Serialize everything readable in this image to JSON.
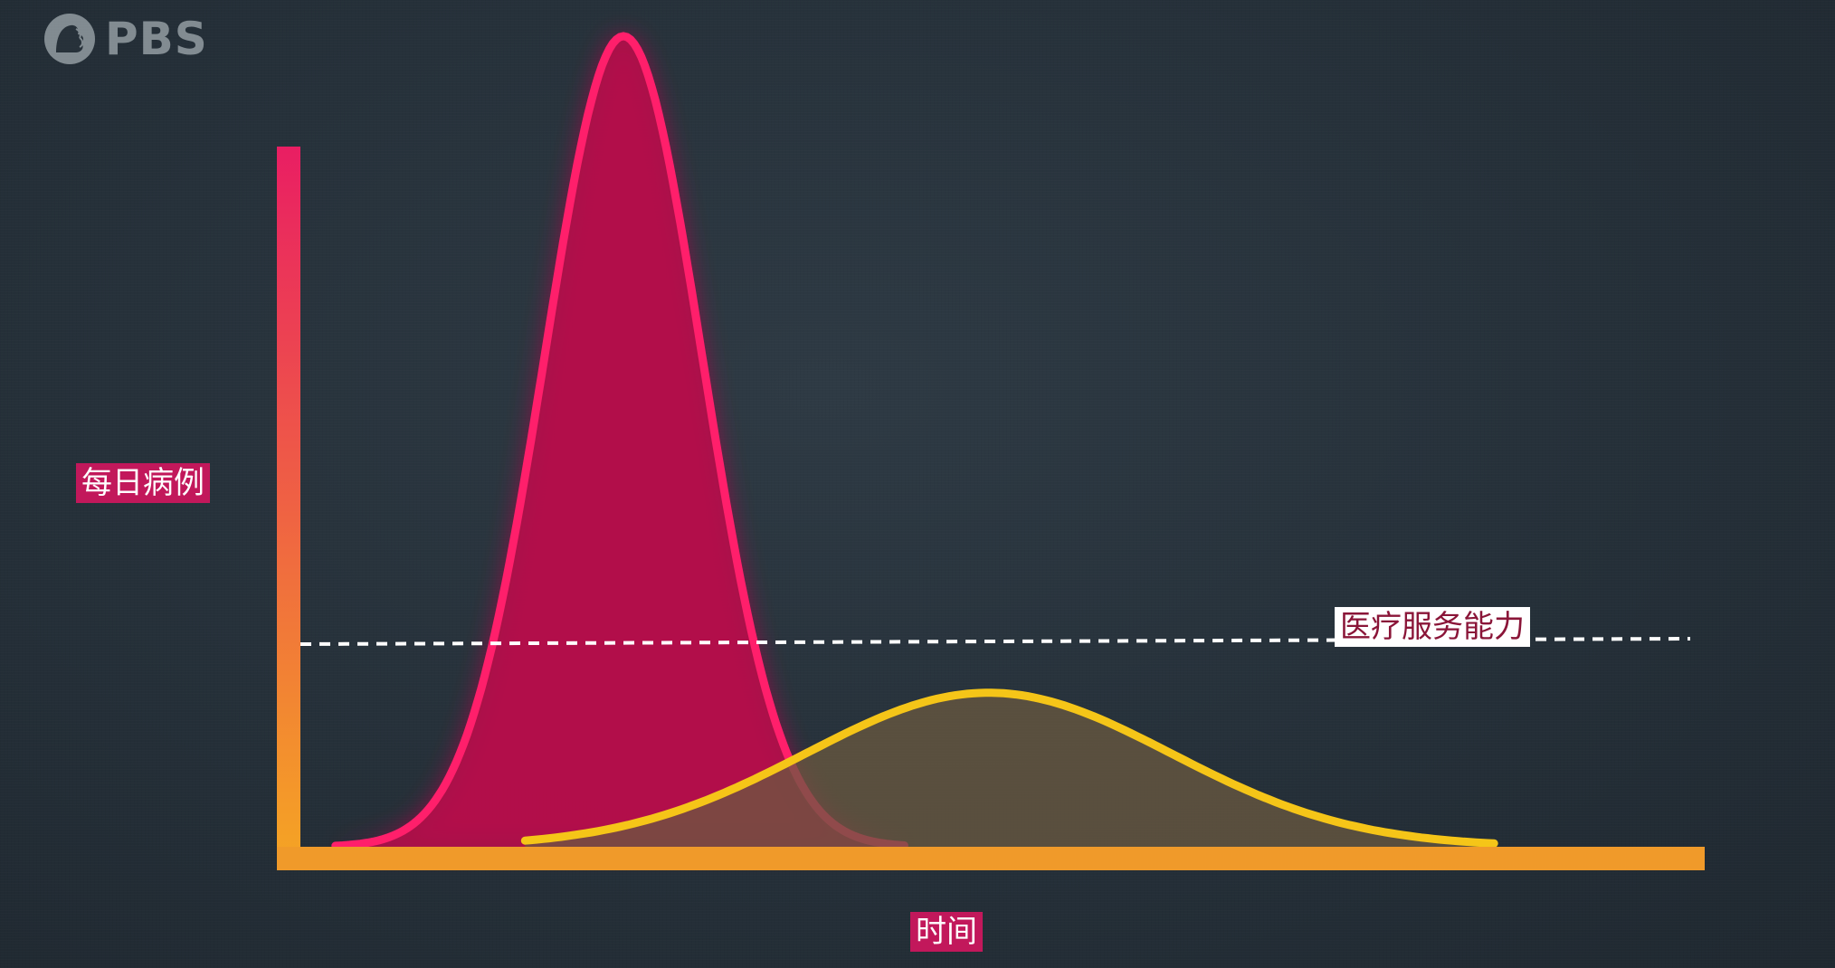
{
  "logo": {
    "text": "PBS",
    "icon": "pbs-head-icon"
  },
  "chart_data": {
    "type": "area",
    "xlabel": "时间",
    "ylabel": "每日病例",
    "grid": false,
    "legend": "none",
    "axes": {
      "y_axis_gradient": [
        "#e91e63",
        "#f5a623"
      ],
      "x_axis_color": "#f09a2a"
    },
    "capacity": {
      "label": "医疗服务能力",
      "value": 0.25,
      "style": "dashed",
      "color": "#ffffff"
    },
    "series": [
      {
        "shape": "gaussian",
        "peak_x": 0.23,
        "peak_y": 1.0,
        "width": 0.056,
        "start_x": 0.025,
        "end_x": 0.43,
        "stroke": "#ff1f6b",
        "fill": "#b5104a"
      },
      {
        "shape": "gaussian",
        "peak_x": 0.49,
        "peak_y": 0.19,
        "width": 0.13,
        "start_x": 0.16,
        "end_x": 0.85,
        "stroke": "#f5c518",
        "fill": "#6b5a40"
      }
    ]
  }
}
